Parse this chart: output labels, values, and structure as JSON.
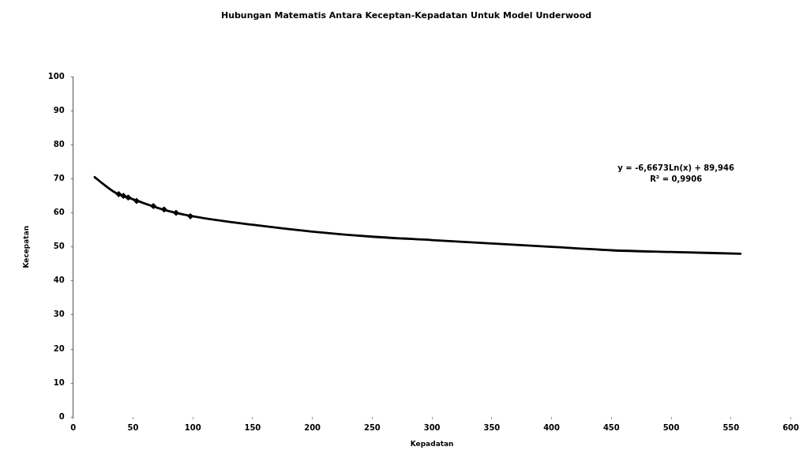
{
  "chart_data": {
    "type": "scatter",
    "title": "Hubungan Matematis Antara Keceptan-Kepadatan Untuk Model Underwood",
    "xlabel": "Kepadatan",
    "ylabel": "Kecepatan",
    "xlim": [
      0,
      600
    ],
    "xticks": [
      0,
      50,
      100,
      150,
      200,
      250,
      300,
      350,
      400,
      450,
      500,
      550,
      600
    ],
    "ylim": [
      0,
      100
    ],
    "yticks": [
      0,
      10,
      20,
      30,
      40,
      50,
      60,
      70,
      80,
      90,
      100
    ],
    "marker": "diamond",
    "series": [
      {
        "type": "scatter",
        "color": "#000000",
        "x": [
          38,
          42,
          46,
          53,
          67,
          76,
          86,
          98
        ],
        "values": [
          65.5,
          65,
          64.5,
          63.5,
          62,
          61,
          60,
          59
        ]
      },
      {
        "type": "line",
        "color": "#000000",
        "marker": "none",
        "line_style": "solid",
        "x": [
          18,
          25,
          35,
          50,
          75,
          100,
          150,
          200,
          250,
          300,
          350,
          400,
          450,
          500,
          558
        ],
        "values": [
          70.5,
          68.5,
          66,
          64,
          61,
          59,
          56.5,
          54.5,
          53,
          52,
          51,
          50,
          49,
          48.5,
          48
        ]
      }
    ],
    "annotations": [
      "y = -6,6673Ln(x) + 89,946",
      "R² = 0,9906"
    ]
  }
}
